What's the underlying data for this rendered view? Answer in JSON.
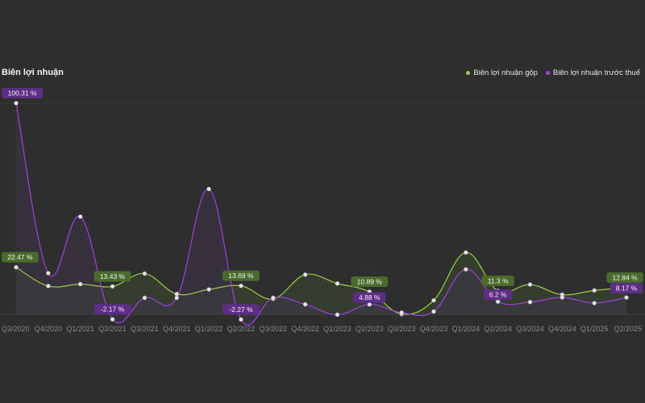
{
  "chart_data": {
    "type": "line",
    "title": "Biên lợi nhuận",
    "categories": [
      "Q3/2020",
      "Q4/2020",
      "Q1/2021",
      "Q2/2021",
      "Q3/2021",
      "Q4/2021",
      "Q1/2022",
      "Q2/2022",
      "Q3/2022",
      "Q4/2022",
      "Q1/2023",
      "Q2/2023",
      "Q3/2023",
      "Q4/2023",
      "Q1/2024",
      "Q2/2024",
      "Q3/2024",
      "Q4/2024",
      "Q1/2025",
      "Q2/2025"
    ],
    "ylim": [
      -2.5,
      100.31
    ],
    "series": [
      {
        "name": "Biên lợi nhuận gộp",
        "color": "#9acd4a",
        "fill": "#3a4a30",
        "label_bg": "#4a6a2e",
        "values": [
          22.47,
          13.6,
          14.5,
          13.43,
          19.5,
          9.8,
          12.0,
          13.69,
          7.5,
          19.0,
          14.8,
          10.89,
          0.3,
          6.8,
          29.5,
          11.3,
          14.3,
          9.5,
          11.5,
          12.84
        ],
        "labels": {
          "0": "22.47 %",
          "3": "13.43 %",
          "7": "13.69 %",
          "11": "10.89 %",
          "15": "11.3 %",
          "19": "12.84 %"
        }
      },
      {
        "name": "Biên lợi nhuận trước thuế",
        "color": "#a040e0",
        "fill": "#3e3548",
        "label_bg": "#5e2d86",
        "values": [
          100.31,
          19.7,
          46.5,
          -2.17,
          8.0,
          8.0,
          59.6,
          -2.27,
          8.0,
          4.9,
          0.0,
          4.88,
          1.0,
          1.5,
          21.5,
          6.2,
          6.0,
          8.2,
          5.5,
          8.17
        ],
        "labels": {
          "0": "100.31 %",
          "3": "-2.17 %",
          "7": "-2.27 %",
          "11": "4.88 %",
          "15": "6.2 %",
          "19": "8.17 %"
        }
      }
    ]
  }
}
